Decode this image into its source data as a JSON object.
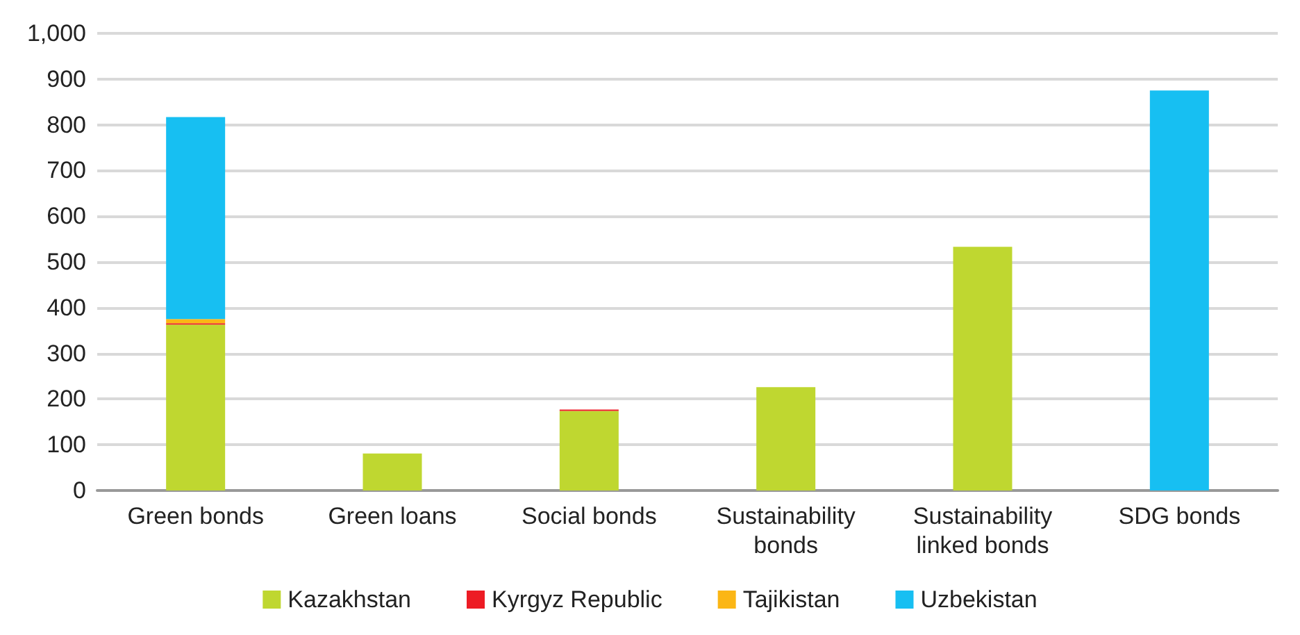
{
  "chart_data": {
    "type": "bar",
    "stacked": true,
    "categories": [
      "Green bonds",
      "Green loans",
      "Social bonds",
      "Sustainability\nbonds",
      "Sustainability\nlinked bonds",
      "SDG bonds"
    ],
    "series": [
      {
        "name": "Kazakhstan",
        "color": "#bfd730",
        "values": [
          363,
          81,
          174,
          226,
          533,
          0
        ]
      },
      {
        "name": "Kyrgyz Republic",
        "color": "#ed1c24",
        "values": [
          3,
          0,
          3,
          0,
          0,
          0
        ]
      },
      {
        "name": "Tajikistan",
        "color": "#fbb615",
        "values": [
          9,
          0,
          0,
          0,
          0,
          0
        ]
      },
      {
        "name": "Uzbekistan",
        "color": "#17bff2",
        "values": [
          442,
          0,
          0,
          0,
          0,
          875
        ]
      }
    ],
    "ylim": [
      0,
      1000
    ],
    "yticks": [
      0,
      100,
      200,
      300,
      400,
      500,
      600,
      700,
      800,
      900,
      {
        "value": 1000,
        "label": "1,000"
      }
    ],
    "grid": "y",
    "legend": "bottom"
  }
}
